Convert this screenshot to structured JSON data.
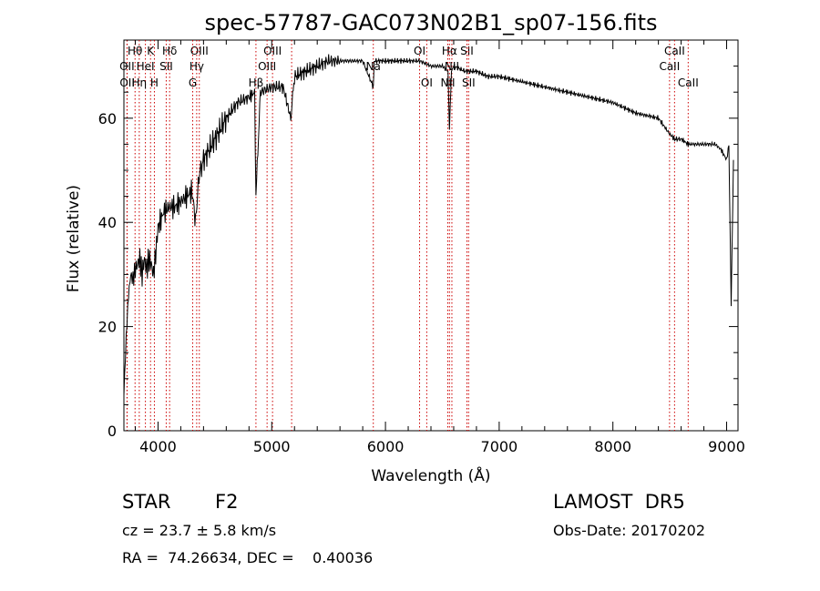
{
  "chart_data": {
    "type": "line",
    "title": "spec-57787-GAC073N02B1_sp07-156.fits",
    "xlabel": "Wavelength (Å)",
    "ylabel": "Flux (relative)",
    "xlim": [
      3700,
      9100
    ],
    "ylim": [
      0,
      75
    ],
    "xticks": [
      4000,
      5000,
      6000,
      7000,
      8000,
      9000
    ],
    "yticks": [
      0,
      20,
      40,
      60
    ],
    "grid": false,
    "line_color": "#000000",
    "marker_color": "#cc0000",
    "series": [
      {
        "x": [
          3700,
          3720,
          3740,
          3760,
          3780,
          3800,
          3820,
          3840,
          3860,
          3880,
          3900,
          3920,
          3940,
          3960,
          3980,
          4000,
          4050,
          4100,
          4150,
          4200,
          4250,
          4300,
          4330,
          4360,
          4400,
          4500,
          4600,
          4700,
          4800,
          4850,
          4861,
          4900,
          5000,
          5100,
          5167,
          5200,
          5300,
          5400,
          5500,
          5600,
          5700,
          5800,
          5893,
          5900,
          6000,
          6100,
          6200,
          6300,
          6400,
          6500,
          6550,
          6563,
          6580,
          6600,
          6700,
          6800,
          6900,
          7000,
          7200,
          7400,
          7600,
          7800,
          8000,
          8200,
          8400,
          8498,
          8542,
          8600,
          8662,
          8700,
          8800,
          8900,
          8950,
          9000,
          9020,
          9040,
          9060
        ],
        "y": [
          7,
          18,
          26,
          30,
          29,
          31,
          32,
          33,
          30,
          33,
          31,
          33,
          32,
          30,
          34,
          39,
          42,
          43,
          43,
          44,
          45,
          46,
          40,
          49,
          52,
          56,
          60,
          63,
          64,
          65,
          45,
          65,
          66,
          66,
          60,
          68,
          69,
          70,
          71,
          71,
          71,
          71,
          66,
          71,
          71,
          71,
          71,
          71,
          70,
          70,
          69,
          58,
          69,
          70,
          69,
          69,
          68,
          68,
          67,
          66,
          65,
          64,
          63,
          61,
          60,
          57,
          56,
          56,
          55,
          55,
          55,
          55,
          54,
          52,
          55,
          24,
          52
        ]
      }
    ],
    "lines": [
      {
        "label": "Hθ",
        "x": 3798,
        "row": 1
      },
      {
        "label": "K",
        "x": 3934,
        "row": 1
      },
      {
        "label": "Hδ",
        "x": 4102,
        "row": 1
      },
      {
        "label": "OIII",
        "x": 4363,
        "row": 1
      },
      {
        "label": "OIII",
        "x": 5007,
        "row": 1
      },
      {
        "label": "OI",
        "x": 6300,
        "row": 1
      },
      {
        "label": "Hα",
        "x": 6563,
        "row": 1
      },
      {
        "label": "SII",
        "x": 6716,
        "row": 1
      },
      {
        "label": "CaII",
        "x": 8542,
        "row": 1
      },
      {
        "label": "OII",
        "x": 3727,
        "row": 2
      },
      {
        "label": "HeI",
        "x": 3889,
        "row": 2
      },
      {
        "label": "SII",
        "x": 4072,
        "row": 2
      },
      {
        "label": "Hγ",
        "x": 4340,
        "row": 2
      },
      {
        "label": "OIII",
        "x": 4959,
        "row": 2
      },
      {
        "label": "Na",
        "x": 5893,
        "row": 2
      },
      {
        "label": "NII",
        "x": 6584,
        "row": 2
      },
      {
        "label": "CaII",
        "x": 8498,
        "row": 2
      },
      {
        "label": "OII",
        "x": 3729,
        "row": 3
      },
      {
        "label": "Hη",
        "x": 3835,
        "row": 3
      },
      {
        "label": "H",
        "x": 3968,
        "row": 3
      },
      {
        "label": "G",
        "x": 4305,
        "row": 3
      },
      {
        "label": "Hβ",
        "x": 4861,
        "row": 3
      },
      {
        "label": "OI",
        "x": 6363,
        "row": 3
      },
      {
        "label": "NII",
        "x": 6548,
        "row": 3
      },
      {
        "label": "SII",
        "x": 6731,
        "row": 3
      },
      {
        "label": "CaII",
        "x": 8662,
        "row": 3
      },
      {
        "label": "",
        "x": 5175,
        "row": 0
      }
    ]
  },
  "info": {
    "object_class": "STAR",
    "subclass": "F2",
    "survey": "LAMOST  DR5",
    "cz": "cz = 23.7 ± 5.8 km/s",
    "obs_date": "Obs-Date: 20170202",
    "coords": "RA =  74.26634, DEC =    0.40036"
  }
}
